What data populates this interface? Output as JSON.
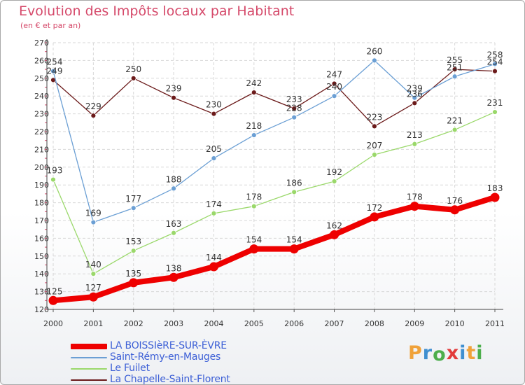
{
  "title": "Evolution des Impôts locaux par Habitant",
  "subtitle": "(en € et par an)",
  "logo": {
    "text": "Proxiti",
    "colors": [
      "#f0a23a",
      "#3f8fd0",
      "#4cae4c",
      "#e23b3b",
      "#3f8fd0",
      "#f0a23a",
      "#4cae4c"
    ]
  },
  "chart_data": {
    "type": "line",
    "title": "Evolution des Impôts locaux par Habitant",
    "subtitle": "(en € et par an)",
    "xlabel": "",
    "ylabel": "",
    "categories": [
      "2000",
      "2001",
      "2002",
      "2003",
      "2004",
      "2005",
      "2006",
      "2007",
      "2008",
      "2009",
      "2010",
      "2011"
    ],
    "ylim": [
      120,
      270
    ],
    "yticks": [
      "120",
      "130",
      "140",
      "150",
      "160",
      "170",
      "180",
      "190",
      "200",
      "210",
      "220",
      "230",
      "240",
      "250",
      "260",
      "270"
    ],
    "grid": true,
    "legend_position": "bottom-left",
    "series": [
      {
        "name": "LA BOISSIèRE-SUR-ÈVRE",
        "color": "#ee0000",
        "values": [
          125,
          127,
          135,
          138,
          144,
          154,
          154,
          162,
          172,
          178,
          176,
          183
        ]
      },
      {
        "name": "Saint-Rémy-en-Mauges",
        "color": "#6b9fd4",
        "values": [
          254,
          169,
          177,
          188,
          205,
          218,
          228,
          240,
          260,
          239,
          251,
          258
        ]
      },
      {
        "name": "Le Fuilet",
        "color": "#9ad86a",
        "values": [
          193,
          140,
          153,
          163,
          174,
          178,
          186,
          192,
          207,
          213,
          221,
          231
        ]
      },
      {
        "name": "La Chapelle-Saint-Florent",
        "color": "#6b1a1a",
        "values": [
          249,
          229,
          250,
          239,
          230,
          242,
          233,
          247,
          223,
          236,
          255,
          254
        ]
      }
    ]
  }
}
